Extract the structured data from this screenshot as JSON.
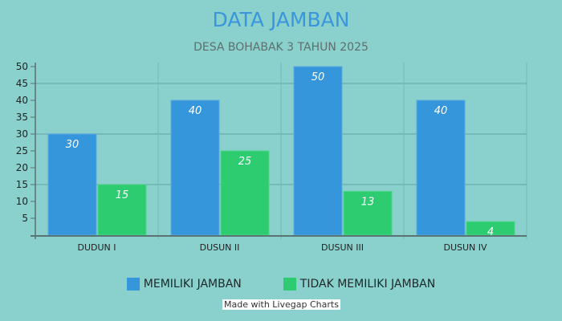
{
  "chart_data": {
    "type": "bar",
    "title": "DATA JAMBAN",
    "subtitle": "DESA BOHABAK 3 TAHUN 2025",
    "categories": [
      "DUDUN I",
      "DUSUN II",
      "DUSUN III",
      "DUSUN IV"
    ],
    "series": [
      {
        "name": "MEMILIKI JAMBAN",
        "color": "#3596dc",
        "values": [
          30,
          40,
          50,
          40
        ]
      },
      {
        "name": "TIDAK MEMILIKI JAMBAN",
        "color": "#2ecc71",
        "values": [
          15,
          25,
          13,
          4
        ]
      }
    ],
    "yticks": [
      5,
      10,
      15,
      20,
      25,
      30,
      35,
      40,
      45,
      50
    ],
    "ylim": [
      0,
      50
    ],
    "grid": true,
    "legend": "bottom",
    "data_labels": true
  },
  "credit": "Made with Livegap Charts"
}
